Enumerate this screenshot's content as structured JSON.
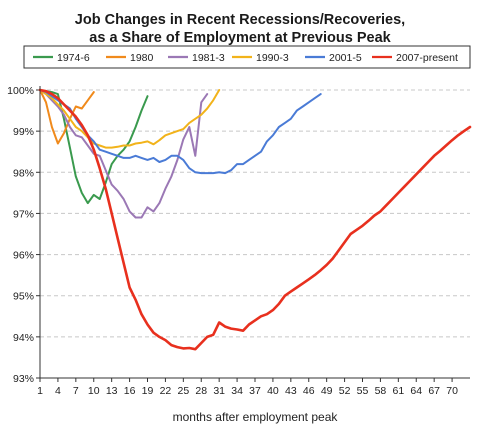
{
  "chart_data": {
    "type": "line",
    "title_lines": [
      "Job Changes in Recent Recessions/Recoveries,",
      "as a Share of Employment at Previous Peak"
    ],
    "xlabel": "months after employment peak",
    "ylabel": "",
    "xlim": [
      1,
      73
    ],
    "ylim": [
      93,
      100
    ],
    "x_ticks": [
      1,
      4,
      7,
      10,
      13,
      16,
      19,
      22,
      25,
      28,
      31,
      34,
      37,
      40,
      43,
      46,
      49,
      52,
      55,
      58,
      61,
      64,
      67,
      70
    ],
    "y_ticks": [
      {
        "value": 100,
        "label": "100%"
      },
      {
        "value": 99,
        "label": "99%"
      },
      {
        "value": 98,
        "label": "98%"
      },
      {
        "value": 97,
        "label": "97%"
      },
      {
        "value": 96,
        "label": "96%"
      },
      {
        "value": 95,
        "label": "95%"
      },
      {
        "value": 94,
        "label": "94%"
      },
      {
        "value": 93,
        "label": "93%"
      }
    ],
    "grid": "horizontal dashed",
    "legend_position": "top",
    "series": [
      {
        "name": "1974-6",
        "color": "#3a9a4e",
        "x": [
          1,
          2,
          3,
          4,
          5,
          6,
          7,
          8,
          9,
          10,
          11,
          12,
          13,
          14,
          15,
          16,
          17,
          18,
          19
        ],
        "values": [
          100.0,
          99.97,
          99.95,
          99.9,
          99.3,
          98.6,
          97.9,
          97.5,
          97.25,
          97.45,
          97.35,
          97.75,
          98.2,
          98.4,
          98.55,
          98.75,
          99.1,
          99.5,
          99.85
        ]
      },
      {
        "name": "1980",
        "color": "#f08a1c",
        "x": [
          1,
          2,
          3,
          4,
          5,
          6,
          7,
          8,
          9,
          10
        ],
        "values": [
          100.0,
          99.7,
          99.1,
          98.7,
          98.95,
          99.3,
          99.6,
          99.55,
          99.75,
          99.95
        ]
      },
      {
        "name": "1981-3",
        "color": "#9b78b5",
        "x": [
          1,
          2,
          3,
          4,
          5,
          6,
          7,
          8,
          9,
          10,
          11,
          12,
          13,
          14,
          15,
          16,
          17,
          18,
          19,
          20,
          21,
          22,
          23,
          24,
          25,
          26,
          27,
          28,
          29
        ],
        "values": [
          100.0,
          99.9,
          99.75,
          99.6,
          99.4,
          99.1,
          98.9,
          98.85,
          98.65,
          98.45,
          98.4,
          98.05,
          97.7,
          97.55,
          97.35,
          97.05,
          96.9,
          96.9,
          97.15,
          97.05,
          97.25,
          97.6,
          97.9,
          98.3,
          98.8,
          99.1,
          98.4,
          99.7,
          99.9
        ]
      },
      {
        "name": "1990-3",
        "color": "#f2b31a",
        "x": [
          1,
          2,
          3,
          4,
          5,
          6,
          7,
          8,
          9,
          10,
          11,
          12,
          13,
          14,
          15,
          16,
          17,
          18,
          19,
          20,
          21,
          22,
          23,
          24,
          25,
          26,
          27,
          28,
          29,
          30,
          31
        ],
        "values": [
          100.0,
          99.9,
          99.8,
          99.65,
          99.5,
          99.3,
          99.1,
          99.0,
          98.85,
          98.7,
          98.65,
          98.6,
          98.6,
          98.62,
          98.65,
          98.65,
          98.7,
          98.72,
          98.75,
          98.68,
          98.78,
          98.9,
          98.95,
          99.0,
          99.05,
          99.2,
          99.3,
          99.4,
          99.55,
          99.75,
          100.0
        ]
      },
      {
        "name": "2001-5",
        "color": "#4a7bd6",
        "x": [
          1,
          2,
          3,
          4,
          5,
          6,
          7,
          8,
          9,
          10,
          11,
          12,
          13,
          14,
          15,
          16,
          17,
          18,
          19,
          20,
          21,
          22,
          23,
          24,
          25,
          26,
          27,
          28,
          29,
          30,
          31,
          32,
          33,
          34,
          35,
          36,
          37,
          38,
          39,
          40,
          41,
          42,
          43,
          44,
          45,
          46,
          47,
          48
        ],
        "values": [
          100.0,
          99.95,
          99.85,
          99.75,
          99.65,
          99.55,
          99.3,
          99.1,
          98.9,
          98.75,
          98.55,
          98.5,
          98.45,
          98.4,
          98.35,
          98.35,
          98.4,
          98.35,
          98.3,
          98.35,
          98.25,
          98.3,
          98.4,
          98.4,
          98.3,
          98.1,
          98.0,
          97.98,
          97.98,
          97.98,
          98.0,
          97.98,
          98.05,
          98.2,
          98.2,
          98.3,
          98.4,
          98.5,
          98.75,
          98.9,
          99.1,
          99.2,
          99.3,
          99.5,
          99.6,
          99.7,
          99.8,
          99.9
        ]
      },
      {
        "name": "2007-present",
        "color": "#e8301e",
        "x": [
          1,
          2,
          3,
          4,
          5,
          6,
          7,
          8,
          9,
          10,
          11,
          12,
          13,
          14,
          15,
          16,
          17,
          18,
          19,
          20,
          21,
          22,
          23,
          24,
          25,
          26,
          27,
          28,
          29,
          30,
          31,
          32,
          33,
          34,
          35,
          36,
          37,
          38,
          39,
          40,
          41,
          42,
          43,
          44,
          45,
          46,
          47,
          48,
          49,
          50,
          51,
          52,
          53,
          54,
          55,
          56,
          57,
          58,
          59,
          60,
          61,
          62,
          63,
          64,
          65,
          66,
          67,
          68,
          69,
          70,
          71,
          72,
          73
        ],
        "values": [
          100.0,
          99.97,
          99.9,
          99.8,
          99.65,
          99.5,
          99.35,
          99.15,
          98.9,
          98.55,
          98.1,
          97.6,
          97.0,
          96.4,
          95.8,
          95.2,
          94.9,
          94.55,
          94.3,
          94.1,
          94.0,
          93.92,
          93.8,
          93.75,
          93.72,
          93.73,
          93.7,
          93.85,
          94.0,
          94.05,
          94.35,
          94.25,
          94.2,
          94.18,
          94.15,
          94.3,
          94.4,
          94.5,
          94.55,
          94.65,
          94.8,
          95.0,
          95.1,
          95.2,
          95.3,
          95.4,
          95.5,
          95.62,
          95.75,
          95.9,
          96.1,
          96.3,
          96.5,
          96.6,
          96.7,
          96.82,
          96.95,
          97.05,
          97.2,
          97.35,
          97.5,
          97.65,
          97.8,
          97.95,
          98.1,
          98.25,
          98.4,
          98.52,
          98.65,
          98.78,
          98.9,
          99.0,
          99.1
        ]
      }
    ]
  }
}
